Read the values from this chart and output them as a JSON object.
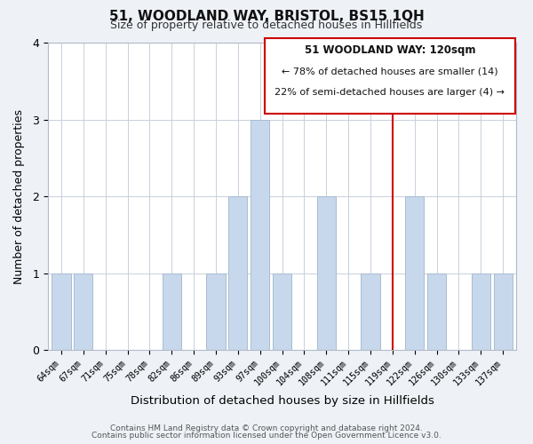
{
  "title": "51, WOODLAND WAY, BRISTOL, BS15 1QH",
  "subtitle": "Size of property relative to detached houses in Hillfields",
  "xlabel": "Distribution of detached houses by size in Hillfields",
  "ylabel": "Number of detached properties",
  "categories": [
    "64sqm",
    "67sqm",
    "71sqm",
    "75sqm",
    "78sqm",
    "82sqm",
    "86sqm",
    "89sqm",
    "93sqm",
    "97sqm",
    "100sqm",
    "104sqm",
    "108sqm",
    "111sqm",
    "115sqm",
    "119sqm",
    "122sqm",
    "126sqm",
    "130sqm",
    "133sqm",
    "137sqm"
  ],
  "values": [
    1,
    1,
    0,
    0,
    0,
    1,
    0,
    1,
    2,
    3,
    1,
    0,
    2,
    0,
    1,
    0,
    2,
    1,
    0,
    1,
    1
  ],
  "bar_color": "#c8d8ec",
  "bar_edgecolor": "#a8bcd0",
  "reference_line_x": 15,
  "reference_line_color": "#cc0000",
  "annotation_title": "51 WOODLAND WAY: 120sqm",
  "annotation_line1": "← 78% of detached houses are smaller (14)",
  "annotation_line2": "22% of semi-detached houses are larger (4) →",
  "annotation_box_color": "#cc0000",
  "ylim": [
    0,
    4
  ],
  "yticks": [
    0,
    1,
    2,
    3,
    4
  ],
  "footer1": "Contains HM Land Registry data © Crown copyright and database right 2024.",
  "footer2": "Contains public sector information licensed under the Open Government Licence v3.0.",
  "background_color": "#eef2f7",
  "plot_background": "#ffffff",
  "grid_color": "#c8d0dc"
}
